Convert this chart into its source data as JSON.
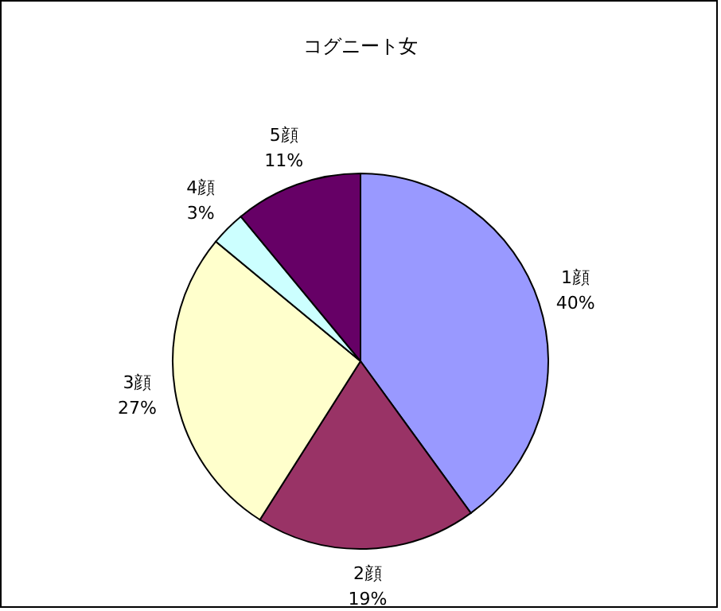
{
  "chart_data": {
    "type": "pie",
    "title": "コグニート女",
    "categories": [
      "1顔",
      "2顔",
      "3顔",
      "4顔",
      "5顔"
    ],
    "values": [
      40,
      19,
      27,
      3,
      11
    ],
    "value_labels": [
      "40%",
      "19%",
      "27%",
      "3%",
      "11%"
    ],
    "colors": [
      "#9999ff",
      "#993366",
      "#ffffcc",
      "#ccffff",
      "#660066"
    ],
    "legend": false
  }
}
